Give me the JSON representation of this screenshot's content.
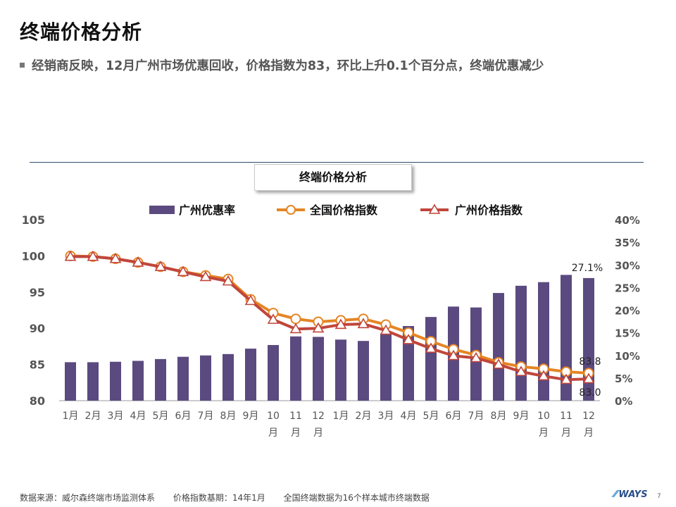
{
  "title": "终端价格分析",
  "bullet": "经销商反映，12月广州市场优惠回收，价格指数为83，环比上升0.1个百分点，终端优惠减少",
  "chart_box_title": "终端价格分析",
  "footer": {
    "source": "数据来源：威尔森终端市场监测体系",
    "base": "价格指数基期：14年1月",
    "note": "全国终端数据为16个样本城市终端数据"
  },
  "logo": "WAYS",
  "page_number": "7",
  "colors": {
    "bar": "#5b4a7f",
    "national_line": "#e58524",
    "national_marker_fill": "#ffffff",
    "gz_line": "#c0463b",
    "axis_text": "#555555"
  },
  "chart_data": {
    "type": "bar+line",
    "categories": [
      "1月",
      "2月",
      "3月",
      "4月",
      "5月",
      "6月",
      "7月",
      "8月",
      "9月",
      "10月",
      "11月",
      "12月",
      "1月",
      "2月",
      "3月",
      "4月",
      "5月",
      "6月",
      "7月",
      "8月",
      "9月",
      "10月",
      "11月",
      "12月"
    ],
    "left_axis": {
      "min": 80,
      "max": 105,
      "ticks": [
        "80",
        "85",
        "90",
        "95",
        "100",
        "105"
      ]
    },
    "right_axis": {
      "min": 0,
      "max": 40,
      "ticks": [
        "0%",
        "5%",
        "10%",
        "15%",
        "20%",
        "25%",
        "30%",
        "35%",
        "40%"
      ]
    },
    "legend_position": "top",
    "series": [
      {
        "name": "广州优惠率",
        "type": "bar",
        "axis": "right",
        "values": [
          8.5,
          8.5,
          8.6,
          8.8,
          9.2,
          9.7,
          10.0,
          10.3,
          11.5,
          12.3,
          14.2,
          14.1,
          13.5,
          13.2,
          14.8,
          16.5,
          18.5,
          20.8,
          20.6,
          23.8,
          25.4,
          26.2,
          27.8,
          27.1
        ],
        "labels": {
          "23": "27.1%"
        }
      },
      {
        "name": "全国价格指数",
        "type": "line",
        "axis": "left",
        "values": [
          100.0,
          99.9,
          99.6,
          99.1,
          98.5,
          97.8,
          97.3,
          96.8,
          94.0,
          92.1,
          91.3,
          90.9,
          91.1,
          91.3,
          90.5,
          89.4,
          88.2,
          87.1,
          86.3,
          85.3,
          84.7,
          84.4,
          84.0,
          83.8
        ],
        "labels": {
          "23": "83.8"
        }
      },
      {
        "name": "广州价格指数",
        "type": "line",
        "axis": "left",
        "values": [
          99.9,
          99.9,
          99.6,
          99.1,
          98.5,
          97.8,
          97.1,
          96.5,
          93.8,
          91.2,
          89.9,
          90.0,
          90.5,
          90.6,
          89.7,
          88.4,
          87.2,
          86.2,
          85.9,
          85.0,
          84.0,
          83.4,
          82.9,
          83.0
        ],
        "labels": {
          "23": "83.0"
        }
      }
    ]
  }
}
